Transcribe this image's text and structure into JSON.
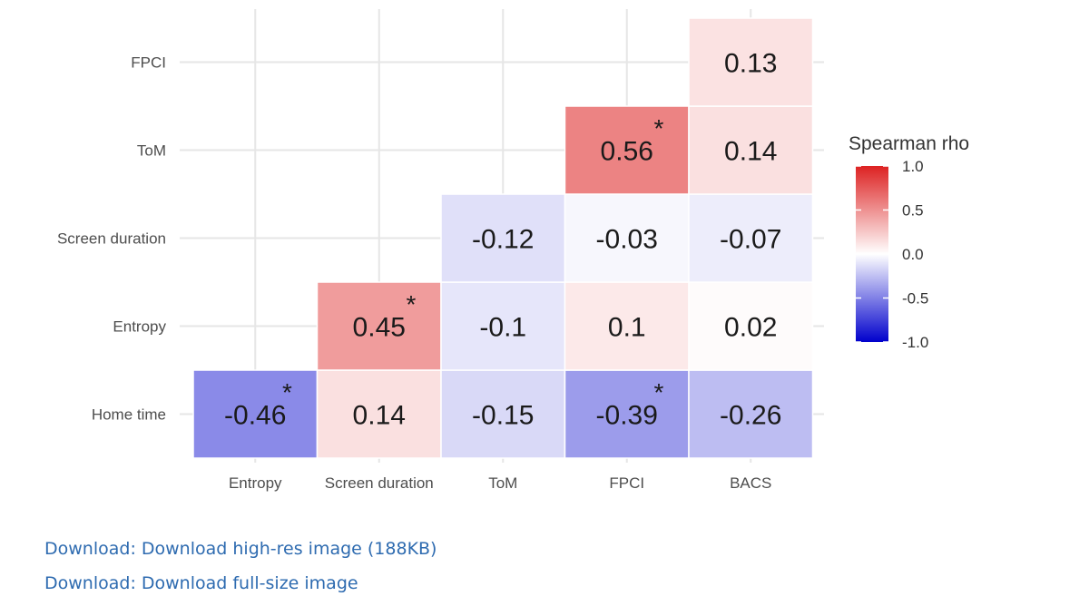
{
  "chart_data": {
    "type": "heatmap",
    "title": "",
    "xlabel": "",
    "ylabel": "",
    "x_categories": [
      "Entropy",
      "Screen duration",
      "ToM",
      "FPCI",
      "BACS"
    ],
    "y_categories": [
      "Home time",
      "Entropy",
      "Screen duration",
      "ToM",
      "FPCI"
    ],
    "cells": [
      {
        "x": "Entropy",
        "y": "Home time",
        "value": -0.46,
        "label": "-0.46",
        "significant": true
      },
      {
        "x": "Screen duration",
        "y": "Home time",
        "value": 0.14,
        "label": "0.14",
        "significant": false
      },
      {
        "x": "ToM",
        "y": "Home time",
        "value": -0.15,
        "label": "-0.15",
        "significant": false
      },
      {
        "x": "FPCI",
        "y": "Home time",
        "value": -0.39,
        "label": "-0.39",
        "significant": true
      },
      {
        "x": "BACS",
        "y": "Home time",
        "value": -0.26,
        "label": "-0.26",
        "significant": false
      },
      {
        "x": "Screen duration",
        "y": "Entropy",
        "value": 0.45,
        "label": "0.45",
        "significant": true
      },
      {
        "x": "ToM",
        "y": "Entropy",
        "value": -0.1,
        "label": "-0.1",
        "significant": false
      },
      {
        "x": "FPCI",
        "y": "Entropy",
        "value": 0.1,
        "label": "0.1",
        "significant": false
      },
      {
        "x": "BACS",
        "y": "Entropy",
        "value": 0.02,
        "label": "0.02",
        "significant": false
      },
      {
        "x": "ToM",
        "y": "Screen duration",
        "value": -0.12,
        "label": "-0.12",
        "significant": false
      },
      {
        "x": "FPCI",
        "y": "Screen duration",
        "value": -0.03,
        "label": "-0.03",
        "significant": false
      },
      {
        "x": "BACS",
        "y": "Screen duration",
        "value": -0.07,
        "label": "-0.07",
        "significant": false
      },
      {
        "x": "FPCI",
        "y": "ToM",
        "value": 0.56,
        "label": "0.56",
        "significant": true
      },
      {
        "x": "BACS",
        "y": "ToM",
        "value": 0.14,
        "label": "0.14",
        "significant": false
      },
      {
        "x": "BACS",
        "y": "FPCI",
        "value": 0.13,
        "label": "0.13",
        "significant": false
      }
    ],
    "significance_marker": "*",
    "color_scale": {
      "low": "#0000cc",
      "mid": "#ffffff",
      "high": "#dd2222",
      "domain": [
        -1.0,
        1.0
      ]
    },
    "legend": {
      "title": "Spearman rho",
      "ticks": [
        1.0,
        0.5,
        0.0,
        -0.5,
        -1.0
      ],
      "tick_labels": [
        "1.0",
        "0.5",
        "0.0",
        "-0.5",
        "-1.0"
      ],
      "position": "right"
    },
    "grid": true
  },
  "downloads": [
    {
      "label": "Download: Download high-res image (188KB)"
    },
    {
      "label": "Download: Download full-size image"
    }
  ]
}
